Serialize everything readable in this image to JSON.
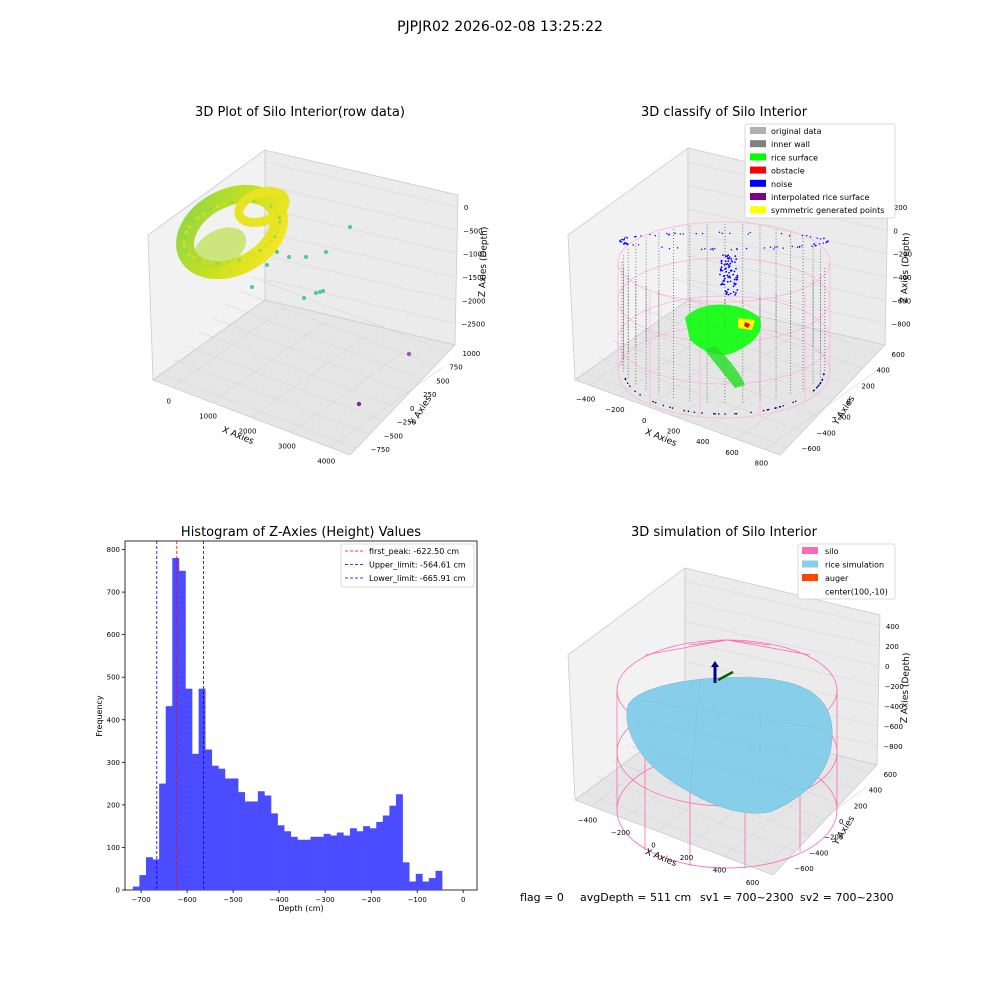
{
  "suptitle": "PJPJR02 2026-02-08 13:25:22",
  "status_line": {
    "flag": "flag = 0",
    "avg_depth": "avgDepth = 511 cm",
    "sv1": "sv1 = 700~2300",
    "sv2": "sv2 = 700~2300"
  },
  "chart_data": [
    {
      "type": "scatter",
      "projection": "3d",
      "title": "3D Plot of Silo Interior(row data)",
      "xlabel": "X Axies",
      "ylabel": "Y Axies",
      "zlabel": "Z Axies (Depth)",
      "x_ticks": [
        "0",
        "1000",
        "2000",
        "3000",
        "4000"
      ],
      "y_ticks": [
        "−750",
        "−500",
        "−250",
        "0",
        "250",
        "500",
        "750",
        "1000"
      ],
      "z_ticks": [
        "0",
        "−500",
        "−1000",
        "−1500",
        "−2000",
        "−2500"
      ],
      "colormap": "viridis",
      "notes_colors": {
        "dense": "#c8e020",
        "sparse": "#50c890",
        "far": "#7b2d8e"
      }
    },
    {
      "type": "scatter",
      "projection": "3d",
      "title": "3D classify of Silo Interior",
      "xlabel": "X Axies",
      "ylabel": "Y Axies",
      "zlabel": "Z Axies (Depth)",
      "x_ticks": [
        "−400",
        "−200",
        "0",
        "200",
        "400",
        "600",
        "800"
      ],
      "y_ticks": [
        "−600",
        "−400",
        "−200",
        "0",
        "200",
        "400",
        "600"
      ],
      "z_ticks": [
        "200",
        "0",
        "−200",
        "−400",
        "−600",
        "−800"
      ],
      "legend_position": "upper right",
      "legend": [
        {
          "label": "original data",
          "color": "#b0b0b0"
        },
        {
          "label": "inner wall",
          "color": "#808080"
        },
        {
          "label": "rice surface",
          "color": "#00ff00"
        },
        {
          "label": "obstacle",
          "color": "#ff0000"
        },
        {
          "label": "noise",
          "color": "#0000ff"
        },
        {
          "label": "interpolated rice surface",
          "color": "#800080"
        },
        {
          "label": "symmetric generated points",
          "color": "#ffff00"
        }
      ]
    },
    {
      "type": "bar",
      "title": "Histogram of Z-Axies (Height) Values",
      "xlabel": "Depth (cm)",
      "ylabel": "Frequency",
      "xlim": [
        -735,
        30
      ],
      "ylim": [
        0,
        820
      ],
      "x_ticks": [
        -700,
        -600,
        -500,
        -400,
        -300,
        -200,
        -100,
        0
      ],
      "y_ticks": [
        0,
        100,
        200,
        300,
        400,
        500,
        600,
        700,
        800
      ],
      "bar_color": "#4b4bff",
      "bin_width": 14.3,
      "bin_start": -718,
      "values": [
        8,
        35,
        77,
        72,
        250,
        432,
        780,
        750,
        473,
        320,
        473,
        330,
        292,
        285,
        262,
        262,
        230,
        208,
        208,
        232,
        222,
        180,
        152,
        138,
        125,
        118,
        118,
        125,
        125,
        132,
        128,
        135,
        128,
        145,
        138,
        150,
        145,
        160,
        175,
        198,
        225,
        65,
        20,
        38,
        20,
        28,
        45
      ],
      "vlines": [
        {
          "x": -622.5,
          "color": "#ff0000",
          "label": "first_peak: -622.50 cm"
        },
        {
          "x": -564.61,
          "color": "#0000cc",
          "label": "Upper_limit: -564.61 cm"
        },
        {
          "x": -665.91,
          "color": "#0000cc",
          "label": "Lower_limit: -665.91 cm"
        }
      ],
      "legend_position": "upper right"
    },
    {
      "type": "scatter",
      "projection": "3d",
      "title": "3D simulation of Silo Interior",
      "xlabel": "X Axies",
      "ylabel": "Y Axies",
      "zlabel": "Z Axies (Depth)",
      "x_ticks": [
        "−400",
        "−200",
        "0",
        "200",
        "400",
        "600"
      ],
      "y_ticks": [
        "−600",
        "−400",
        "−200",
        "0",
        "200",
        "400",
        "600"
      ],
      "z_ticks": [
        "400",
        "200",
        "0",
        "−200",
        "−400",
        "−600",
        "−800"
      ],
      "legend_position": "upper right",
      "legend": [
        {
          "label": "silo",
          "color": "#ff69b4"
        },
        {
          "label": "rice simulation",
          "color": "#87ceeb"
        },
        {
          "label": "auger",
          "color": "#ff4500"
        },
        {
          "label": "center(100,-10)",
          "color": ""
        }
      ]
    }
  ]
}
